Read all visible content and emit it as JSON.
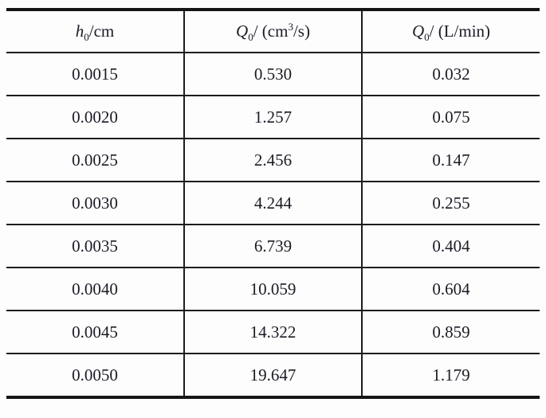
{
  "table": {
    "headers": [
      {
        "var": "h",
        "sub": "0",
        "unit": "/cm"
      },
      {
        "var": "Q",
        "sub": "0",
        "pre": "/ (cm",
        "sup": "3",
        "post": "/s)"
      },
      {
        "var": "Q",
        "sub": "0",
        "unit": "/ (L/min)"
      }
    ],
    "rows": [
      [
        "0.0015",
        "0.530",
        "0.032"
      ],
      [
        "0.0020",
        "1.257",
        "0.075"
      ],
      [
        "0.0025",
        "2.456",
        "0.147"
      ],
      [
        "0.0030",
        "4.244",
        "0.255"
      ],
      [
        "0.0035",
        "6.739",
        "0.404"
      ],
      [
        "0.0040",
        "10.059",
        "0.604"
      ],
      [
        "0.0045",
        "14.322",
        "0.859"
      ],
      [
        "0.0050",
        "19.647",
        "1.179"
      ]
    ]
  }
}
